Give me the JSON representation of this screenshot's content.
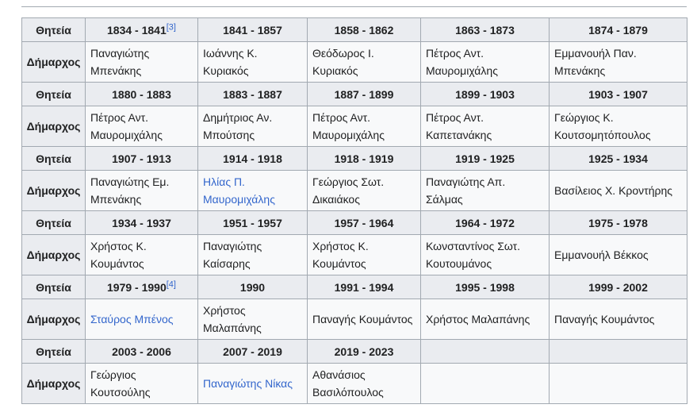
{
  "labels": {
    "term": "Θητεία",
    "mayor": "Δήμαρχος"
  },
  "table": {
    "rows": [
      {
        "periods": [
          {
            "text": "1834 - 1841",
            "note": "[3]"
          },
          "1841 - 1857",
          "1858 - 1862",
          "1863 - 1873",
          "1874 - 1879"
        ],
        "mayors": [
          "Παναγιώτης Μπενάκης",
          "Ιωάννης Κ. Κυριακός",
          "Θεόδωρος Ι. Κυριακός",
          "Πέτρος Αντ. Μαυρομιχάλης",
          "Εμμανουήλ Παν. Μπενάκης"
        ]
      },
      {
        "periods": [
          "1880 - 1883",
          "1883 - 1887",
          "1887 - 1899",
          "1899 - 1903",
          "1903 - 1907"
        ],
        "mayors": [
          "Πέτρος Αντ. Μαυρομιχάλης",
          "Δημήτριος Αν. Μπούτσης",
          "Πέτρος Αντ. Μαυρομιχάλης",
          "Πέτρος Αντ. Καπετανάκης",
          "Γεώργιος Κ. Κουτσομητόπουλος"
        ]
      },
      {
        "periods": [
          "1907 - 1913",
          "1914 - 1918",
          "1918 - 1919",
          "1919 - 1925",
          "1925 - 1934"
        ],
        "mayors": [
          "Παναγιώτης Εμ. Μπενάκης",
          {
            "text": "Ηλίας Π. Μαυρομιχάλης",
            "link": true
          },
          "Γεώργιος Σωτ. Δικαιάκος",
          "Παναγιώτης Απ. Σάλμας",
          "Βασίλειος Χ. Κροντήρης"
        ]
      },
      {
        "periods": [
          "1934 - 1937",
          "1951 - 1957",
          "1957 - 1964",
          "1964 - 1972",
          "1975 - 1978"
        ],
        "mayors": [
          "Χρήστος Κ. Κουμάντος",
          "Παναγιώτης Καίσαρης",
          "Χρήστος Κ. Κουμάντος",
          "Κωνσταντίνος Σωτ. Κουτουμάνος",
          "Εμμανουήλ Βέκκος"
        ]
      },
      {
        "periods": [
          {
            "text": "1979 - 1990",
            "note": "[4]"
          },
          "1990",
          "1991 - 1994",
          "1995 - 1998",
          "1999 - 2002"
        ],
        "mayors": [
          {
            "text": "Σταύρος Μπένος",
            "link": true
          },
          "Χρήστος Μαλαπάνης",
          "Παναγής Κουμάντος",
          "Χρήστος Μαλαπάνης",
          "Παναγής Κουμάντος"
        ]
      },
      {
        "periods": [
          "2003 - 2006",
          "2007 - 2019",
          "2019 - 2023"
        ],
        "mayors": [
          "Γεώργιος Κουτσούλης",
          {
            "text": "Παναγιώτης Νίκας",
            "link": true
          },
          "Αθανάσιος Βασιλόπουλος"
        ]
      }
    ]
  }
}
